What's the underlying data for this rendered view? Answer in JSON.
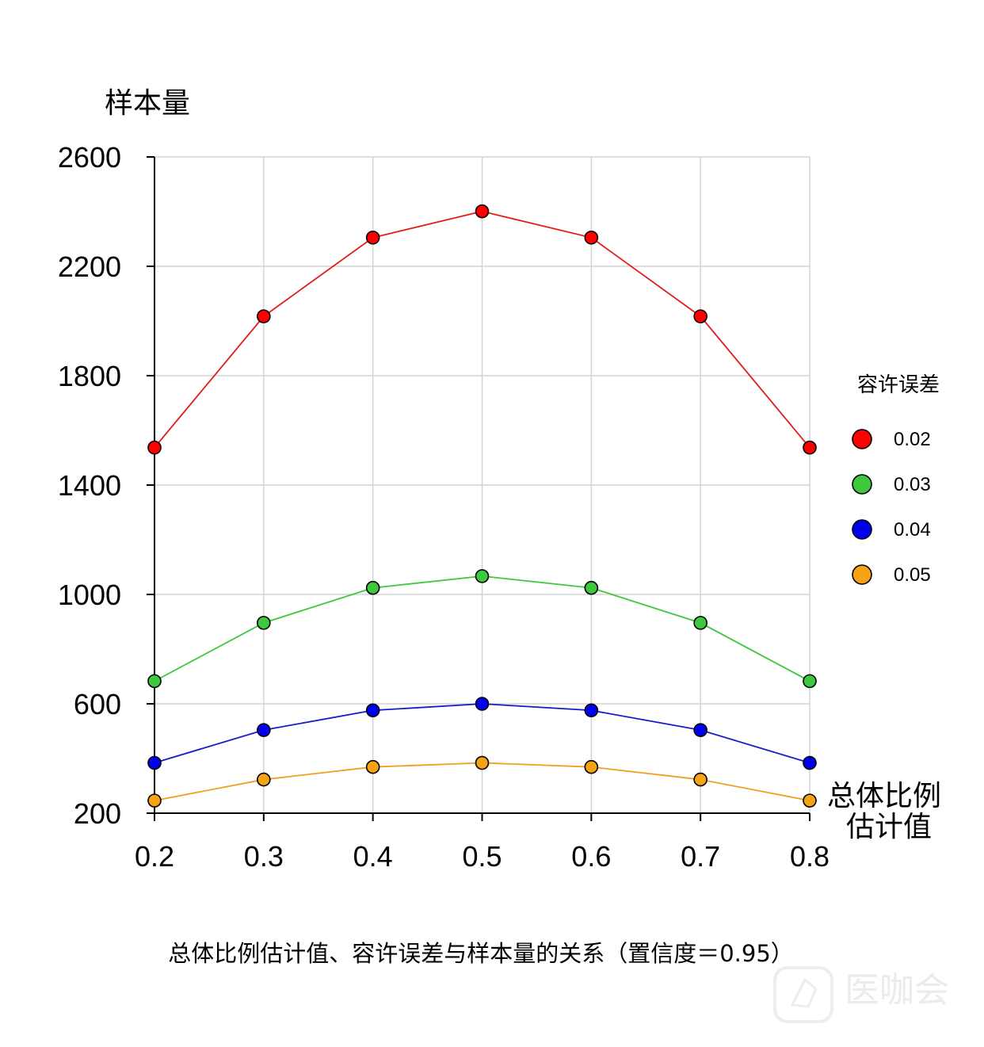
{
  "chart_data": {
    "type": "line",
    "title": "总体比例估计值、容许误差与样本量的关系（置信度＝0.95）",
    "ylabel": "样本量",
    "xlabel": [
      "总体比例",
      "估计值"
    ],
    "x": [
      0.2,
      0.3,
      0.4,
      0.5,
      0.6,
      0.7,
      0.8
    ],
    "x_tick_labels": [
      "0.2",
      "0.3",
      "0.4",
      "0.5",
      "0.6",
      "0.7",
      "0.8"
    ],
    "xlim": [
      0.2,
      0.8
    ],
    "ylim": [
      200,
      2600
    ],
    "y_ticks": [
      200,
      600,
      1000,
      1400,
      1800,
      2200,
      2600
    ],
    "y_tick_labels": [
      "200",
      "600",
      "1000",
      "1400",
      "1800",
      "2200",
      "2600"
    ],
    "grid": true,
    "legend": {
      "title": "容许误差",
      "position": "right"
    },
    "series": [
      {
        "name": "0.02",
        "color": "#ff0000",
        "line_color": "#e21b1b",
        "values": [
          1537,
          2017,
          2305,
          2401,
          2305,
          2017,
          1537
        ]
      },
      {
        "name": "0.03",
        "color": "#3ec83e",
        "line_color": "#3ec83e",
        "values": [
          683,
          896,
          1024,
          1067,
          1024,
          896,
          683
        ]
      },
      {
        "name": "0.04",
        "color": "#0000ee",
        "line_color": "#1a1acc",
        "values": [
          384,
          504,
          576,
          600,
          576,
          504,
          384
        ]
      },
      {
        "name": "0.05",
        "color": "#f5a314",
        "line_color": "#f0a020",
        "values": [
          246,
          323,
          369,
          384,
          369,
          323,
          246
        ]
      }
    ]
  },
  "watermark": {
    "text": "医咖会",
    "icon": "speech-bubble-icon"
  }
}
